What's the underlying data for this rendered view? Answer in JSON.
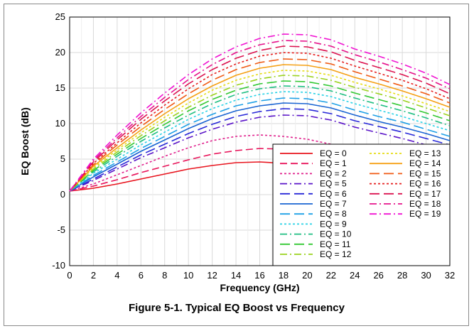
{
  "figure": {
    "caption": "Figure 5-1. Typical EQ Boost vs Frequency"
  },
  "chart_data": {
    "type": "line",
    "xlabel": "Frequency (GHz)",
    "ylabel": "EQ Boost (dB)",
    "xlim": [
      0,
      32
    ],
    "ylim": [
      -10,
      25
    ],
    "xticks": [
      0,
      2,
      4,
      6,
      8,
      10,
      12,
      14,
      16,
      18,
      20,
      22,
      24,
      26,
      28,
      30,
      32
    ],
    "yticks": [
      -10,
      -5,
      0,
      5,
      10,
      15,
      20,
      25
    ],
    "grid": true,
    "legend_position": "bottom-right",
    "x": [
      0,
      2,
      4,
      6,
      8,
      10,
      12,
      14,
      16,
      18,
      20,
      22,
      24,
      26,
      28,
      30,
      32
    ],
    "series": [
      {
        "name": "EQ = 0",
        "color": "#e8141e",
        "dash": "solid",
        "values": [
          0.5,
          0.9,
          1.5,
          2.2,
          2.9,
          3.6,
          4.1,
          4.5,
          4.6,
          4.4,
          4.0,
          3.5,
          null,
          null,
          null,
          null,
          null
        ]
      },
      {
        "name": "EQ = 1",
        "color": "#e8145a",
        "dash": "dash",
        "values": [
          0.5,
          1.2,
          2.1,
          3.1,
          4.0,
          4.9,
          5.7,
          6.2,
          6.5,
          6.4,
          6.0,
          5.3,
          null,
          null,
          null,
          null,
          null
        ]
      },
      {
        "name": "EQ = 2",
        "color": "#e0208c",
        "dash": "dot",
        "values": [
          0.5,
          1.5,
          2.8,
          4.1,
          5.4,
          6.6,
          7.6,
          8.2,
          8.4,
          8.2,
          7.8,
          7.1,
          null,
          null,
          null,
          null,
          null
        ]
      },
      {
        "name": "EQ = 5",
        "color": "#5a14c8",
        "dash": "dashdot",
        "values": [
          0.5,
          2.0,
          3.6,
          5.2,
          6.6,
          8.0,
          9.2,
          10.2,
          10.9,
          11.2,
          11.1,
          10.5,
          9.5,
          8.7,
          7.9,
          7.0,
          6.2
        ]
      },
      {
        "name": "EQ = 6",
        "color": "#2828d8",
        "dash": "longdash",
        "values": [
          0.5,
          2.2,
          3.9,
          5.6,
          7.1,
          8.6,
          9.9,
          11.0,
          11.7,
          12.1,
          12.0,
          11.4,
          10.4,
          9.6,
          8.8,
          7.9,
          7.0
        ]
      },
      {
        "name": "EQ = 7",
        "color": "#1a64d2",
        "dash": "solid",
        "values": [
          0.5,
          2.5,
          4.3,
          6.1,
          7.7,
          9.3,
          10.7,
          11.8,
          12.5,
          12.9,
          12.8,
          12.2,
          11.2,
          10.3,
          9.5,
          8.6,
          7.6
        ]
      },
      {
        "name": "EQ = 8",
        "color": "#1ea0e6",
        "dash": "longdash",
        "values": [
          0.5,
          2.7,
          4.6,
          6.5,
          8.2,
          9.9,
          11.3,
          12.5,
          13.2,
          13.6,
          13.5,
          12.9,
          11.9,
          11.0,
          10.2,
          9.2,
          8.2
        ]
      },
      {
        "name": "EQ = 9",
        "color": "#28d2e6",
        "dash": "dot",
        "values": [
          0.5,
          3.0,
          5.0,
          7.0,
          8.8,
          10.6,
          12.1,
          13.3,
          14.1,
          14.5,
          14.4,
          13.8,
          12.8,
          11.9,
          11.0,
          10.0,
          9.0
        ]
      },
      {
        "name": "EQ = 10",
        "color": "#1ebe82",
        "dash": "dashdot",
        "values": [
          0.5,
          3.2,
          5.4,
          7.5,
          9.4,
          11.2,
          12.8,
          14.1,
          14.9,
          15.3,
          15.2,
          14.6,
          13.6,
          12.7,
          11.8,
          10.8,
          9.7
        ]
      },
      {
        "name": "EQ = 11",
        "color": "#32c832",
        "dash": "longdash",
        "values": [
          0.5,
          3.4,
          5.7,
          7.9,
          9.9,
          11.8,
          13.4,
          14.7,
          15.6,
          16.0,
          15.9,
          15.3,
          14.3,
          13.4,
          12.5,
          11.5,
          10.4
        ]
      },
      {
        "name": "EQ = 12",
        "color": "#9bd21e",
        "dash": "dashdot",
        "values": [
          0.5,
          3.6,
          6.0,
          8.3,
          10.4,
          12.3,
          14.0,
          15.4,
          16.3,
          16.8,
          16.7,
          16.1,
          15.1,
          14.2,
          13.3,
          12.2,
          11.1
        ]
      },
      {
        "name": "EQ = 13",
        "color": "#e6dc14",
        "dash": "dot",
        "values": [
          0.5,
          3.8,
          6.3,
          8.7,
          10.9,
          12.9,
          14.7,
          16.1,
          17.0,
          17.5,
          17.4,
          16.8,
          15.8,
          14.9,
          13.9,
          12.8,
          11.7
        ]
      },
      {
        "name": "EQ = 14",
        "color": "#f5a014",
        "dash": "solid",
        "values": [
          0.5,
          4.0,
          6.6,
          9.1,
          11.4,
          13.5,
          15.3,
          16.8,
          17.8,
          18.3,
          18.2,
          17.6,
          16.5,
          15.6,
          14.6,
          13.5,
          12.3
        ]
      },
      {
        "name": "EQ = 15",
        "color": "#f05a14",
        "dash": "longdash",
        "values": [
          0.5,
          4.2,
          7.0,
          9.6,
          12.0,
          14.2,
          16.1,
          17.6,
          18.6,
          19.1,
          19.0,
          18.4,
          17.3,
          16.3,
          15.3,
          14.2,
          12.9
        ]
      },
      {
        "name": "EQ = 16",
        "color": "#e61e1e",
        "dash": "dot",
        "values": [
          0.5,
          4.4,
          7.3,
          10.1,
          12.6,
          14.9,
          16.9,
          18.4,
          19.5,
          20.0,
          19.9,
          19.2,
          18.1,
          17.1,
          16.1,
          14.9,
          13.5
        ]
      },
      {
        "name": "EQ = 17",
        "color": "#dc1450",
        "dash": "longdash",
        "values": [
          0.5,
          4.6,
          7.7,
          10.6,
          13.2,
          15.6,
          17.6,
          19.2,
          20.3,
          20.9,
          20.8,
          20.1,
          18.9,
          17.9,
          16.9,
          15.7,
          14.2
        ]
      },
      {
        "name": "EQ = 18",
        "color": "#e6148c",
        "dash": "dashdot",
        "values": [
          0.5,
          4.8,
          8.0,
          11.0,
          13.7,
          16.2,
          18.3,
          20.0,
          21.1,
          21.7,
          21.6,
          20.9,
          19.7,
          18.7,
          17.6,
          16.4,
          14.9
        ]
      },
      {
        "name": "EQ = 19",
        "color": "#f014d2",
        "dash": "dashdot",
        "values": [
          0.5,
          5.0,
          8.4,
          11.5,
          14.3,
          16.9,
          19.1,
          20.8,
          22.0,
          22.6,
          22.5,
          21.8,
          20.5,
          19.5,
          18.4,
          17.1,
          15.5
        ]
      }
    ]
  }
}
